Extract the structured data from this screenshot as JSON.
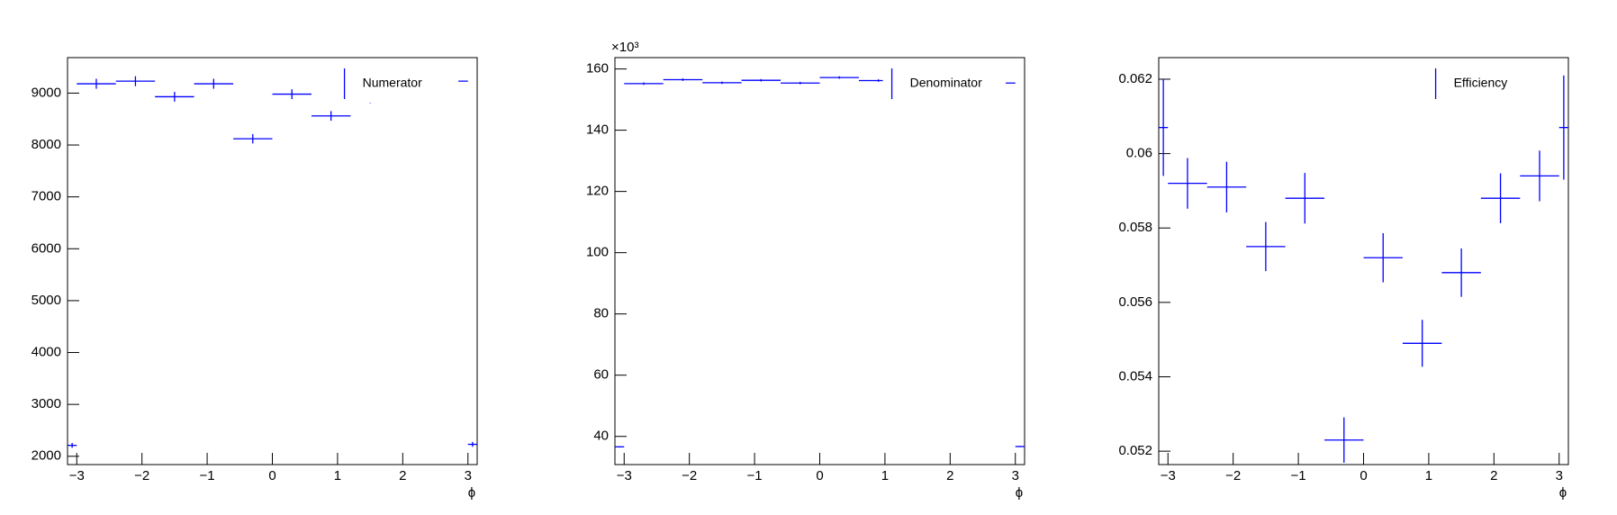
{
  "chart_data": [
    {
      "type": "histogram",
      "x_label": "ϕ",
      "bins": [
        -3.1416,
        -3,
        -2.4,
        -1.8,
        -1.2,
        -0.6,
        0,
        0.6,
        1.2,
        1.8,
        2.4,
        3,
        3.1416
      ],
      "series": [
        {
          "name": "Numerator",
          "color": "#0000ff",
          "values": [
            2210,
            9180,
            9230,
            8930,
            9180,
            8120,
            8980,
            8560,
            8900,
            9170,
            9230,
            2230
          ],
          "errors": [
            47,
            96,
            96,
            94,
            96,
            90,
            95,
            93,
            94,
            96,
            96,
            47
          ]
        }
      ],
      "xlim": [
        -3.1416,
        3.1416
      ],
      "xticks": [
        {
          "value": -3,
          "label": "−3"
        },
        {
          "value": -2,
          "label": "−2"
        },
        {
          "value": -1,
          "label": "−1"
        },
        0,
        1,
        2,
        3
      ],
      "ylim": [
        1840,
        9684
      ],
      "yticks": [
        2000,
        3000,
        4000,
        5000,
        6000,
        7000,
        8000,
        9000
      ]
    },
    {
      "type": "histogram",
      "x_label": "ϕ",
      "y_multiplier": "×10³",
      "bins": [
        -3.1416,
        -3,
        -2.4,
        -1.8,
        -1.2,
        -0.6,
        0,
        0.6,
        1.2,
        1.8,
        2.4,
        3,
        3.1416
      ],
      "series": [
        {
          "name": "Denominator",
          "color": "#0000ff",
          "values": [
            36.6,
            155.2,
            156.5,
            155.5,
            156.3,
            155.4,
            157.2,
            156.2,
            156.5,
            156.0,
            155.4,
            36.7
          ],
          "errors": [
            0.19,
            0.39,
            0.4,
            0.39,
            0.4,
            0.39,
            0.4,
            0.4,
            0.4,
            0.39,
            0.39,
            0.19
          ]
        }
      ],
      "xlim": [
        -3.1416,
        3.1416
      ],
      "xticks": [
        {
          "value": -3,
          "label": "−3"
        },
        {
          "value": -2,
          "label": "−2"
        },
        {
          "value": -1,
          "label": "−1"
        },
        0,
        1,
        2,
        3
      ],
      "ylim": [
        30.8,
        163.7
      ],
      "yticks": [
        40,
        60,
        80,
        100,
        120,
        140,
        160
      ]
    },
    {
      "type": "histogram",
      "x_label": "ϕ",
      "bins": [
        -3.1416,
        -3,
        -2.4,
        -1.8,
        -1.2,
        -0.6,
        0,
        0.6,
        1.2,
        1.8,
        2.4,
        3,
        3.1416
      ],
      "series": [
        {
          "name": "Efficiency",
          "color": "#0000ff",
          "values": [
            0.0607,
            0.0592,
            0.0591,
            0.0575,
            0.0588,
            0.0523,
            0.0572,
            0.0549,
            0.0568,
            0.0588,
            0.0594,
            0.0607
          ],
          "errors": [
            0.0013,
            0.00068,
            0.00068,
            0.00066,
            0.00068,
            0.00061,
            0.00066,
            0.00063,
            0.00065,
            0.00067,
            0.00068,
            0.0014
          ]
        }
      ],
      "xlim": [
        -3.1416,
        3.1416
      ],
      "xticks": [
        {
          "value": -3,
          "label": "−3"
        },
        {
          "value": -2,
          "label": "−2"
        },
        {
          "value": -1,
          "label": "−1"
        },
        0,
        1,
        2,
        3
      ],
      "ylim": [
        0.05164,
        0.06258
      ],
      "yticks": [
        0.052,
        0.054,
        0.056,
        0.058,
        0.06,
        0.062
      ]
    }
  ]
}
